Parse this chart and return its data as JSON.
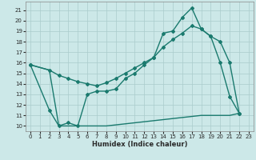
{
  "xlabel": "Humidex (Indice chaleur)",
  "bg_color": "#cce8e8",
  "grid_color": "#aacccc",
  "line_color": "#1a7a6e",
  "xlim": [
    -0.5,
    23.5
  ],
  "ylim": [
    9.5,
    21.8
  ],
  "xticks": [
    0,
    1,
    2,
    3,
    4,
    5,
    6,
    7,
    8,
    9,
    10,
    11,
    12,
    13,
    14,
    15,
    16,
    17,
    18,
    19,
    20,
    21,
    22,
    23
  ],
  "yticks": [
    10,
    11,
    12,
    13,
    14,
    15,
    16,
    17,
    18,
    19,
    20,
    21
  ],
  "line1_x": [
    0,
    2,
    3,
    4,
    5,
    6,
    7,
    8,
    9,
    10,
    11,
    12,
    13,
    14,
    15,
    16,
    17,
    18,
    19,
    20,
    21,
    22
  ],
  "line1_y": [
    15.8,
    11.5,
    10.0,
    10.3,
    10.0,
    13.0,
    13.3,
    13.3,
    13.5,
    14.5,
    15.0,
    15.8,
    16.5,
    18.8,
    19.0,
    20.3,
    21.2,
    19.2,
    18.5,
    16.0,
    12.8,
    11.2
  ],
  "line2_x": [
    0,
    2,
    3,
    4,
    5,
    6,
    7,
    8,
    9,
    10,
    11,
    12,
    13,
    14,
    15,
    16,
    17,
    18,
    19,
    20,
    21,
    22
  ],
  "line2_y": [
    15.8,
    15.3,
    14.8,
    14.5,
    14.2,
    14.0,
    13.8,
    14.1,
    14.5,
    15.0,
    15.5,
    16.0,
    16.5,
    17.5,
    18.2,
    18.8,
    19.5,
    19.2,
    18.5,
    18.0,
    16.0,
    11.2
  ],
  "line3_x": [
    0,
    2,
    3,
    4,
    5,
    6,
    7,
    8,
    9,
    10,
    11,
    12,
    13,
    14,
    15,
    16,
    17,
    18,
    19,
    20,
    21,
    22
  ],
  "line3_y": [
    15.8,
    15.3,
    10.0,
    10.0,
    10.0,
    10.0,
    10.0,
    10.0,
    10.1,
    10.2,
    10.3,
    10.4,
    10.5,
    10.6,
    10.7,
    10.8,
    10.9,
    11.0,
    11.0,
    11.0,
    11.0,
    11.2
  ],
  "xlabel_fontsize": 6,
  "tick_fontsize": 5,
  "linewidth": 1.0,
  "marker_size": 2.0
}
